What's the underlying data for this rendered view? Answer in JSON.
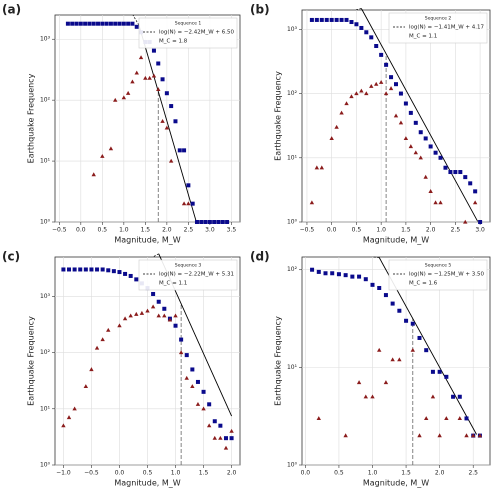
{
  "chart_data": [
    {
      "type": "scatter",
      "panel_label": "(a)",
      "legend_title": "Sequence 1",
      "xlabel": "Magnitude, M_W",
      "ylabel": "Earthquake Frequency",
      "log_y": true,
      "grid": true,
      "xlim": [
        -0.6,
        3.7
      ],
      "ylim": [
        1,
        2500
      ],
      "xticks": [
        {
          "value": -0.5,
          "label": "−0.5"
        },
        {
          "value": 0,
          "label": "0.0"
        },
        0.5,
        {
          "value": 1,
          "label": "1.0"
        },
        1.5,
        {
          "value": 2,
          "label": "2.0"
        },
        2.5,
        {
          "value": 3,
          "label": "3.0"
        },
        3.5
      ],
      "yticks": [
        {
          "value": 1,
          "label": "10⁰"
        },
        {
          "value": 10,
          "label": "10¹"
        },
        {
          "value": 100,
          "label": "10²"
        },
        {
          "value": 1000,
          "label": "10³"
        }
      ],
      "x": [
        -0.3,
        -0.2,
        -0.1,
        0,
        0.1,
        0.2,
        0.3,
        0.4,
        0.5,
        0.6,
        0.7,
        0.8,
        0.9,
        1,
        1.1,
        1.2,
        1.3,
        1.4,
        1.5,
        1.6,
        1.7,
        1.8,
        1.9,
        2,
        2.1,
        2.2,
        2.3,
        2.4,
        2.5,
        2.6,
        2.7,
        2.8,
        2.9,
        3,
        3.1,
        3.2,
        3.3,
        3.4
      ],
      "series": [
        {
          "marker": "square",
          "color": "#0a0a8c",
          "values": [
            1800,
            1800,
            1800,
            1800,
            1800,
            1800,
            1800,
            1800,
            1800,
            1800,
            1800,
            1800,
            1800,
            1800,
            1800,
            1800,
            1600,
            1300,
            900,
            900,
            650,
            400,
            220,
            130,
            80,
            45,
            15,
            15,
            4,
            2,
            1,
            1,
            1,
            1,
            1,
            1,
            1,
            1
          ]
        },
        {
          "marker": "triangle",
          "color": "#8b1c1c",
          "values": [
            null,
            null,
            null,
            null,
            null,
            null,
            6,
            null,
            12,
            null,
            16,
            100,
            null,
            110,
            130,
            200,
            280,
            500,
            230,
            230,
            250,
            150,
            45,
            35,
            10,
            null,
            null,
            2,
            2,
            null,
            null,
            null,
            null,
            null,
            null,
            null,
            null,
            null
          ]
        }
      ],
      "fit": {
        "label": "log(N) = −2.42M_W + 6.50",
        "slope": -2.42,
        "intercept": 6.5,
        "x": [
          1.35,
          2.69
        ]
      },
      "mc": {
        "label": "M_C = 1.8",
        "value": 1.8
      }
    },
    {
      "type": "scatter",
      "panel_label": "(b)",
      "legend_title": "Sequence 2",
      "xlabel": "Magnitude, M_W",
      "ylabel": "Earthquake Frequency",
      "log_y": true,
      "grid": true,
      "xlim": [
        -0.6,
        3.2
      ],
      "ylim": [
        1,
        2000
      ],
      "xticks": [
        {
          "value": -0.5,
          "label": "−0.5"
        },
        {
          "value": 0,
          "label": "0.0"
        },
        0.5,
        {
          "value": 1,
          "label": "1.0"
        },
        1.5,
        {
          "value": 2,
          "label": "2.0"
        },
        2.5,
        {
          "value": 3,
          "label": "3.0"
        }
      ],
      "yticks": [
        {
          "value": 1,
          "label": "10⁰"
        },
        {
          "value": 10,
          "label": "10¹"
        },
        {
          "value": 100,
          "label": "10²"
        },
        {
          "value": 1000,
          "label": "10³"
        }
      ],
      "x": [
        -0.4,
        -0.3,
        -0.2,
        -0.1,
        0,
        0.1,
        0.2,
        0.3,
        0.4,
        0.5,
        0.6,
        0.7,
        0.8,
        0.9,
        1,
        1.1,
        1.2,
        1.3,
        1.4,
        1.5,
        1.6,
        1.7,
        1.8,
        1.9,
        2,
        2.1,
        2.2,
        2.3,
        2.4,
        2.5,
        2.6,
        2.7,
        2.8,
        2.9,
        3
      ],
      "series": [
        {
          "marker": "square",
          "color": "#0a0a8c",
          "values": [
            1400,
            1400,
            1400,
            1400,
            1400,
            1400,
            1400,
            1400,
            1300,
            1200,
            1050,
            900,
            750,
            550,
            400,
            280,
            180,
            140,
            100,
            70,
            50,
            35,
            25,
            20,
            15,
            12,
            10,
            7,
            6,
            6,
            6,
            5,
            4,
            3,
            1
          ]
        },
        {
          "marker": "triangle",
          "color": "#8b1c1c",
          "values": [
            2,
            7,
            7,
            null,
            20,
            30,
            50,
            70,
            90,
            100,
            110,
            100,
            130,
            140,
            150,
            100,
            120,
            45,
            35,
            20,
            15,
            12,
            10,
            5,
            3,
            2,
            2,
            null,
            null,
            null,
            null,
            1,
            null,
            2,
            null
          ]
        }
      ],
      "fit": {
        "label": "log(N) = −1.41M_W + 4.17",
        "slope": -1.41,
        "intercept": 4.17,
        "x": [
          0.6,
          2.95
        ]
      },
      "mc": {
        "label": "M_C = 1.1",
        "value": 1.1
      }
    },
    {
      "type": "scatter",
      "panel_label": "(c)",
      "legend_title": "Sequence 3",
      "xlabel": "Magnitude, M_W",
      "ylabel": "Earthquake Frequency",
      "log_y": true,
      "grid": true,
      "xlim": [
        -1.15,
        2.15
      ],
      "ylim": [
        1,
        5000
      ],
      "xticks": [
        {
          "value": -1,
          "label": "−1.0"
        },
        {
          "value": -0.5,
          "label": "−0.5"
        },
        {
          "value": 0,
          "label": "0.0"
        },
        0.5,
        {
          "value": 1,
          "label": "1.0"
        },
        1.5,
        {
          "value": 2,
          "label": "2.0"
        }
      ],
      "yticks": [
        {
          "value": 1,
          "label": "10⁰"
        },
        {
          "value": 10,
          "label": "10¹"
        },
        {
          "value": 100,
          "label": "10²"
        },
        {
          "value": 1000,
          "label": "10³"
        }
      ],
      "x": [
        -1,
        -0.9,
        -0.8,
        -0.7,
        -0.6,
        -0.5,
        -0.4,
        -0.3,
        -0.2,
        -0.1,
        0,
        0.1,
        0.2,
        0.3,
        0.4,
        0.5,
        0.6,
        0.7,
        0.8,
        0.9,
        1,
        1.1,
        1.2,
        1.3,
        1.4,
        1.5,
        1.6,
        1.7,
        1.8,
        1.9,
        2
      ],
      "series": [
        {
          "marker": "square",
          "color": "#0a0a8c",
          "values": [
            3000,
            3000,
            3000,
            3000,
            3000,
            3000,
            3000,
            3000,
            2900,
            2800,
            2700,
            2500,
            2300,
            2000,
            1700,
            1400,
            1100,
            800,
            600,
            400,
            300,
            170,
            90,
            50,
            30,
            20,
            12,
            6,
            5,
            3,
            3
          ]
        },
        {
          "marker": "triangle",
          "color": "#8b1c1c",
          "values": [
            5,
            7,
            10,
            null,
            25,
            50,
            120,
            170,
            250,
            null,
            300,
            400,
            450,
            480,
            500,
            550,
            650,
            450,
            450,
            380,
            450,
            100,
            35,
            25,
            12,
            10,
            5,
            3,
            3,
            2,
            4
          ]
        }
      ],
      "fit": {
        "label": "log(N) = −2.22M_W + 5.31",
        "slope": -2.22,
        "intercept": 5.31,
        "x": [
          0.7,
          2.0
        ]
      },
      "mc": {
        "label": "M_C = 1.1",
        "value": 1.1
      }
    },
    {
      "type": "scatter",
      "panel_label": "(d)",
      "legend_title": "Sequence 5",
      "xlabel": "Magnitude, M_W",
      "ylabel": "Earthquake Frequency",
      "log_y": true,
      "grid": true,
      "xlim": [
        -0.05,
        2.75
      ],
      "ylim": [
        1,
        135
      ],
      "xticks": [
        {
          "value": 0,
          "label": "0.0"
        },
        0.5,
        {
          "value": 1,
          "label": "1.0"
        },
        1.5,
        {
          "value": 2,
          "label": "2.0"
        },
        2.5
      ],
      "yticks": [
        {
          "value": 1,
          "label": "10⁰"
        },
        {
          "value": 10,
          "label": "10¹"
        },
        {
          "value": 100,
          "label": "10²"
        }
      ],
      "x": [
        0.1,
        0.2,
        0.3,
        0.4,
        0.5,
        0.6,
        0.7,
        0.8,
        0.9,
        1,
        1.1,
        1.2,
        1.3,
        1.4,
        1.5,
        1.6,
        1.7,
        1.8,
        1.9,
        2,
        2.1,
        2.2,
        2.3,
        2.4,
        2.5,
        2.6
      ],
      "series": [
        {
          "marker": "square",
          "color": "#0a0a8c",
          "values": [
            100,
            95,
            92,
            92,
            90,
            88,
            85,
            85,
            80,
            70,
            65,
            55,
            45,
            38,
            30,
            28,
            20,
            15,
            9,
            9,
            8,
            5,
            5,
            3,
            2,
            2
          ]
        },
        {
          "marker": "triangle",
          "color": "#8b1c1c",
          "values": [
            null,
            3,
            null,
            null,
            null,
            2,
            null,
            7,
            5,
            5,
            15,
            7,
            12,
            12,
            null,
            15,
            2,
            3,
            5,
            2,
            3,
            null,
            3,
            2,
            2,
            2
          ]
        }
      ],
      "fit": {
        "label": "log(N) = −1.25M_W + 3.50",
        "slope": -1.25,
        "intercept": 3.5,
        "x": [
          1.1,
          2.55
        ]
      },
      "mc": {
        "label": "M_C = 1.6",
        "value": 1.6
      }
    }
  ]
}
